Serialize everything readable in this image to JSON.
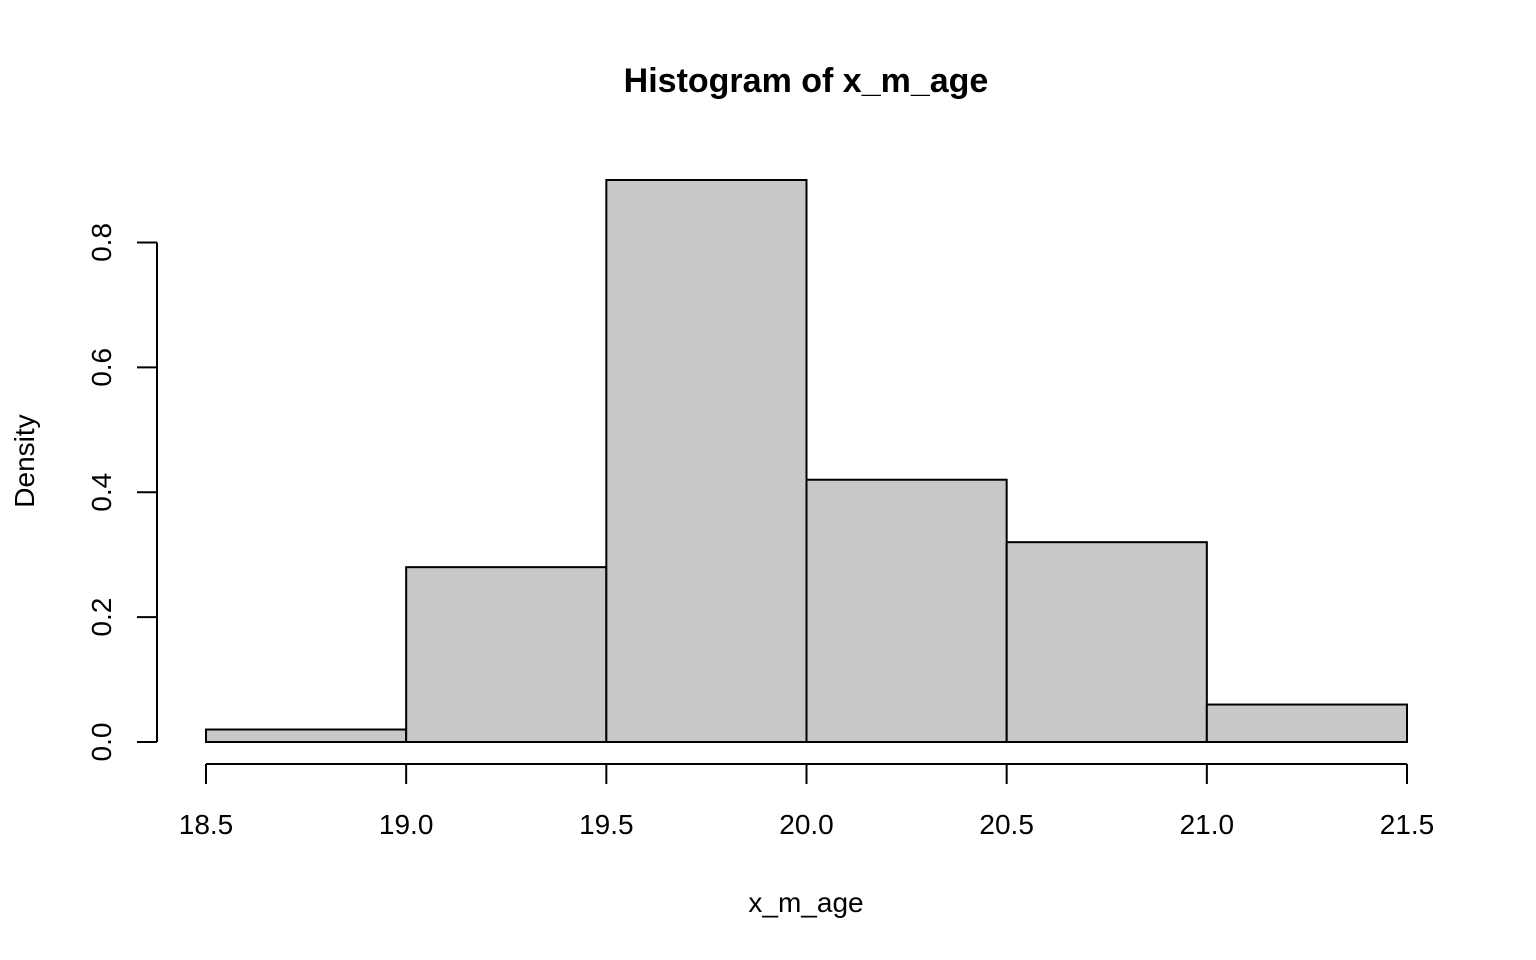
{
  "chart_data": {
    "type": "bar",
    "title": "Histogram of x_m_age",
    "xlabel": "x_m_age",
    "ylabel": "Density",
    "bins": [
      {
        "from": 18.5,
        "to": 19.0,
        "density": 0.02
      },
      {
        "from": 19.0,
        "to": 19.5,
        "density": 0.28
      },
      {
        "from": 19.5,
        "to": 20.0,
        "density": 0.9
      },
      {
        "from": 20.0,
        "to": 20.5,
        "density": 0.42
      },
      {
        "from": 20.5,
        "to": 21.0,
        "density": 0.32
      },
      {
        "from": 21.0,
        "to": 21.5,
        "density": 0.06
      }
    ],
    "x_ticks": [
      "18.5",
      "19.0",
      "19.5",
      "20.0",
      "20.5",
      "21.0",
      "21.5"
    ],
    "y_ticks": [
      "0.0",
      "0.2",
      "0.4",
      "0.6",
      "0.8"
    ],
    "xlim": [
      18.5,
      21.5
    ],
    "ylim": [
      0,
      0.9
    ],
    "grid": false,
    "bar_color": "#c8c8c8",
    "border_color": "#000000"
  }
}
